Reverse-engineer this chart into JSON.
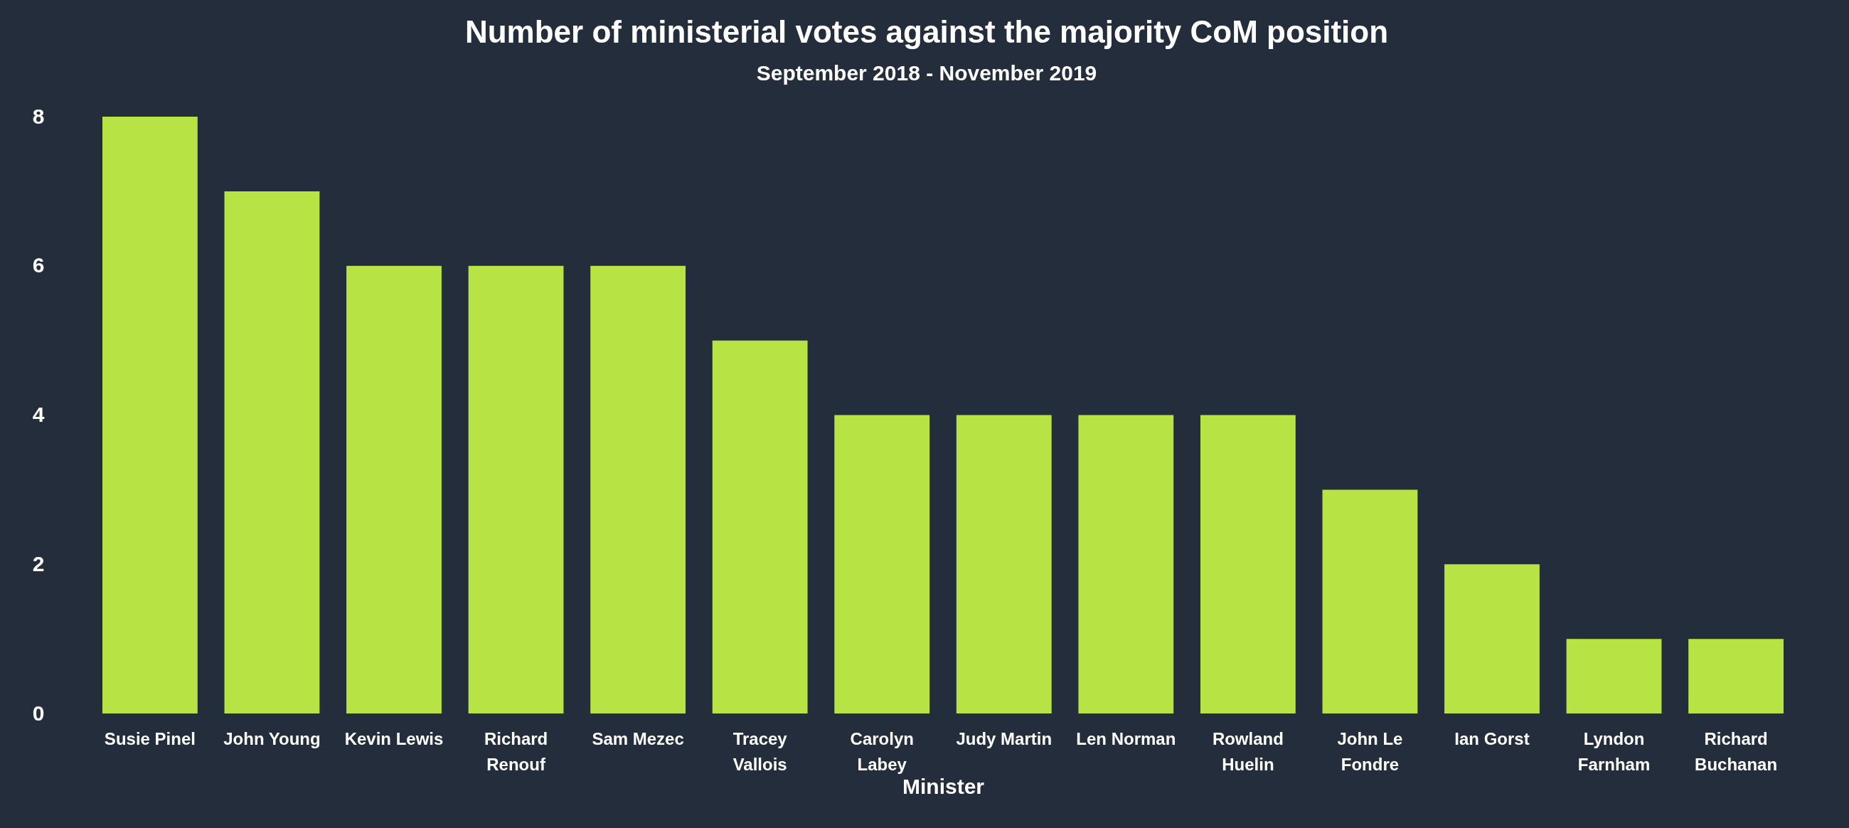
{
  "chart_data": {
    "type": "bar",
    "title": "Number of ministerial votes against the majority CoM position",
    "subtitle": "September 2018 - November 2019",
    "xlabel": "Minister",
    "categories": [
      "Susie Pinel",
      "John Young",
      "Kevin Lewis",
      "Richard Renouf",
      "Sam Mezec",
      "Tracey Vallois",
      "Carolyn Labey",
      "Judy Martin",
      "Len Norman",
      "Rowland Huelin",
      "John Le Fondre",
      "Ian Gorst",
      "Lyndon Farnham",
      "Richard Buchanan"
    ],
    "values": [
      8,
      7,
      6,
      6,
      6,
      5,
      4,
      4,
      4,
      4,
      3,
      2,
      1,
      1
    ],
    "color": "#b8e344",
    "ylim": [
      0,
      8
    ],
    "yticks": [
      0,
      2,
      4,
      6,
      8
    ],
    "grid": false
  }
}
